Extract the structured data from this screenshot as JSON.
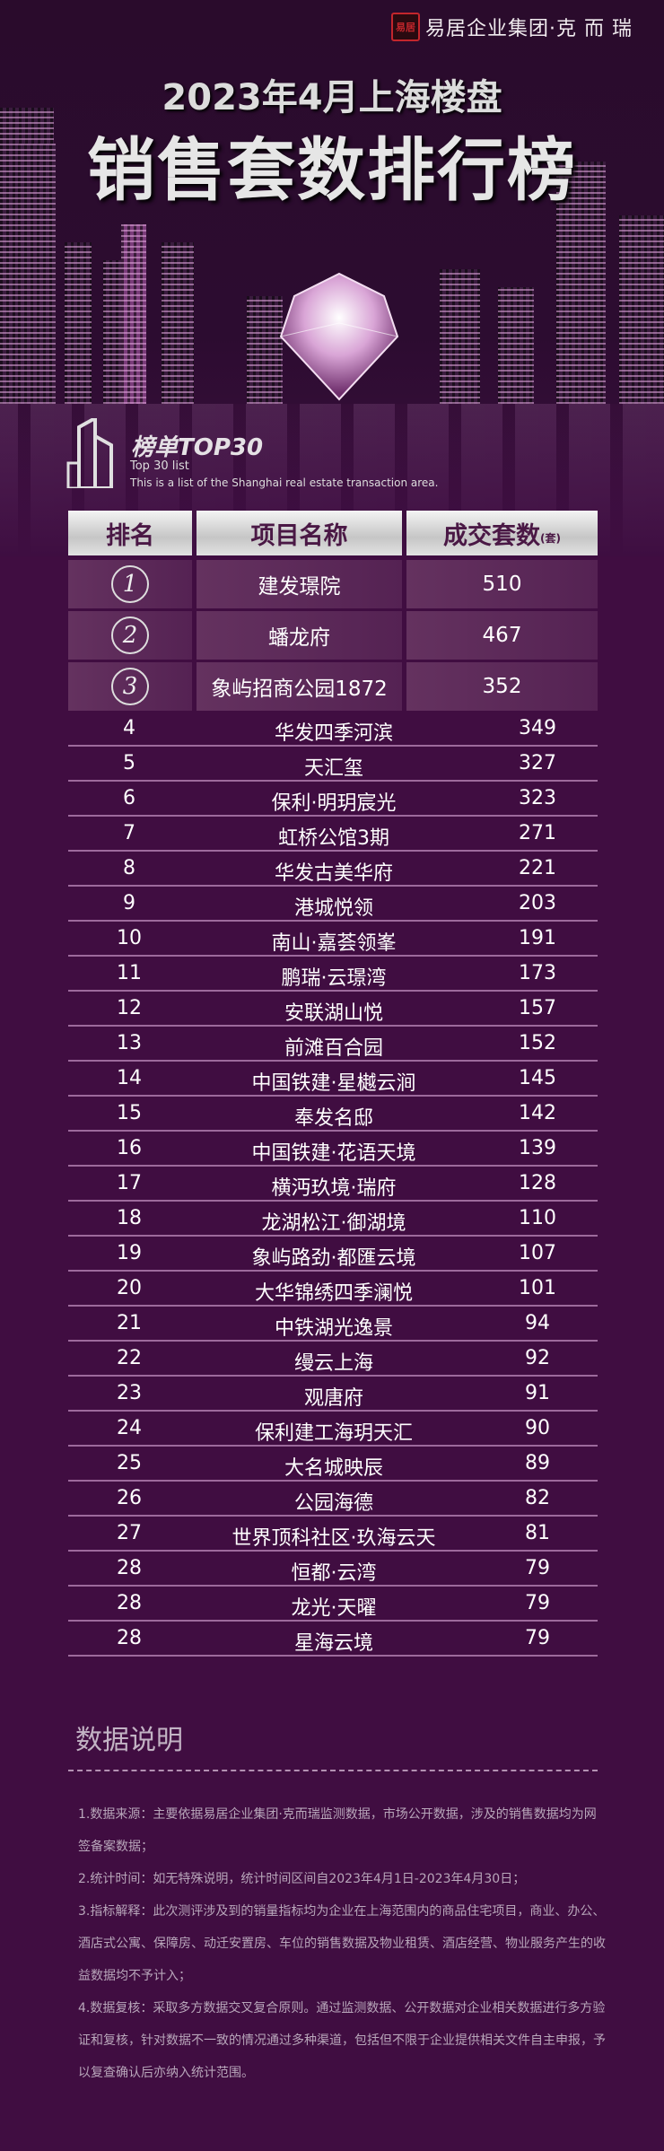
{
  "brand": {
    "seal": "易居",
    "name": "易居企业集团·克 而 瑞"
  },
  "title": {
    "line1": "2023年4月上海楼盘",
    "line2": "销售套数排行榜"
  },
  "section": {
    "title": "榜单TOP30",
    "subtitle": "Top 30 list",
    "description": "This is a list of the Shanghai real estate transaction area."
  },
  "table": {
    "headers": {
      "rank": "排名",
      "name": "项目名称",
      "count": "成交套数",
      "unit": "(套)"
    },
    "top3": [
      {
        "rank": "1",
        "name": "建发璟院",
        "count": "510"
      },
      {
        "rank": "2",
        "name": "蟠龙府",
        "count": "467"
      },
      {
        "rank": "3",
        "name": "象屿招商公园1872",
        "count": "352"
      }
    ],
    "rows": [
      {
        "rank": "4",
        "name": "华发四季河滨",
        "count": "349"
      },
      {
        "rank": "5",
        "name": "天汇玺",
        "count": "327"
      },
      {
        "rank": "6",
        "name": "保利·明玥宸光",
        "count": "323"
      },
      {
        "rank": "7",
        "name": "虹桥公馆3期",
        "count": "271"
      },
      {
        "rank": "8",
        "name": "华发古美华府",
        "count": "221"
      },
      {
        "rank": "9",
        "name": "港城悦领",
        "count": "203"
      },
      {
        "rank": "10",
        "name": "南山·嘉荟领峯",
        "count": "191"
      },
      {
        "rank": "11",
        "name": "鹏瑞·云璟湾",
        "count": "173"
      },
      {
        "rank": "12",
        "name": "安联湖山悦",
        "count": "157"
      },
      {
        "rank": "13",
        "name": "前滩百合园",
        "count": "152"
      },
      {
        "rank": "14",
        "name": "中国铁建·星樾云涧",
        "count": "145"
      },
      {
        "rank": "15",
        "name": "奉发名邸",
        "count": "142"
      },
      {
        "rank": "16",
        "name": "中国铁建·花语天境",
        "count": "139"
      },
      {
        "rank": "17",
        "name": "横沔玖境·瑞府",
        "count": "128"
      },
      {
        "rank": "18",
        "name": "龙湖松江·御湖境",
        "count": "110"
      },
      {
        "rank": "19",
        "name": "象屿路劲·都匯云境",
        "count": "107"
      },
      {
        "rank": "20",
        "name": "大华锦绣四季澜悦",
        "count": "101"
      },
      {
        "rank": "21",
        "name": "中铁湖光逸景",
        "count": "94"
      },
      {
        "rank": "22",
        "name": "缦云上海",
        "count": "92"
      },
      {
        "rank": "23",
        "name": "观唐府",
        "count": "91"
      },
      {
        "rank": "24",
        "name": "保利建工海玥天汇",
        "count": "90"
      },
      {
        "rank": "25",
        "name": "大名城映辰",
        "count": "89"
      },
      {
        "rank": "26",
        "name": "公园海德",
        "count": "82"
      },
      {
        "rank": "27",
        "name": "世界顶科社区·玖海云天",
        "count": "81"
      },
      {
        "rank": "28",
        "name": "恒都·云湾",
        "count": "79"
      },
      {
        "rank": "28",
        "name": "龙光·天曜",
        "count": "79"
      },
      {
        "rank": "28",
        "name": "星海云境",
        "count": "79"
      }
    ]
  },
  "notes": {
    "title": "数据说明",
    "items": [
      "1.数据来源：主要依据易居企业集团·克而瑞监测数据，市场公开数据，涉及的销售数据均为网签备案数据；",
      "2.统计时间：如无特殊说明，统计时间区间自2023年4月1日-2023年4月30日；",
      "3.指标解释：此次测评涉及到的销量指标均为企业在上海范围内的商品住宅项目，商业、办公、酒店式公寓、保障房、动迁安置房、车位的销售数据及物业租赁、酒店经营、物业服务产生的收益数据均不予计入；",
      "4.数据复核：采取多方数据交叉复合原则。通过监测数据、公开数据对企业相关数据进行多方验证和复核，针对数据不一致的情况通过多种渠道，包括但不限于企业提供相关文件自主申报，予以复查确认后亦纳入统计范围。"
    ]
  },
  "colors": {
    "background": "#400d41",
    "row_line": "#9d6a9c",
    "header_text": "#4a1845"
  }
}
